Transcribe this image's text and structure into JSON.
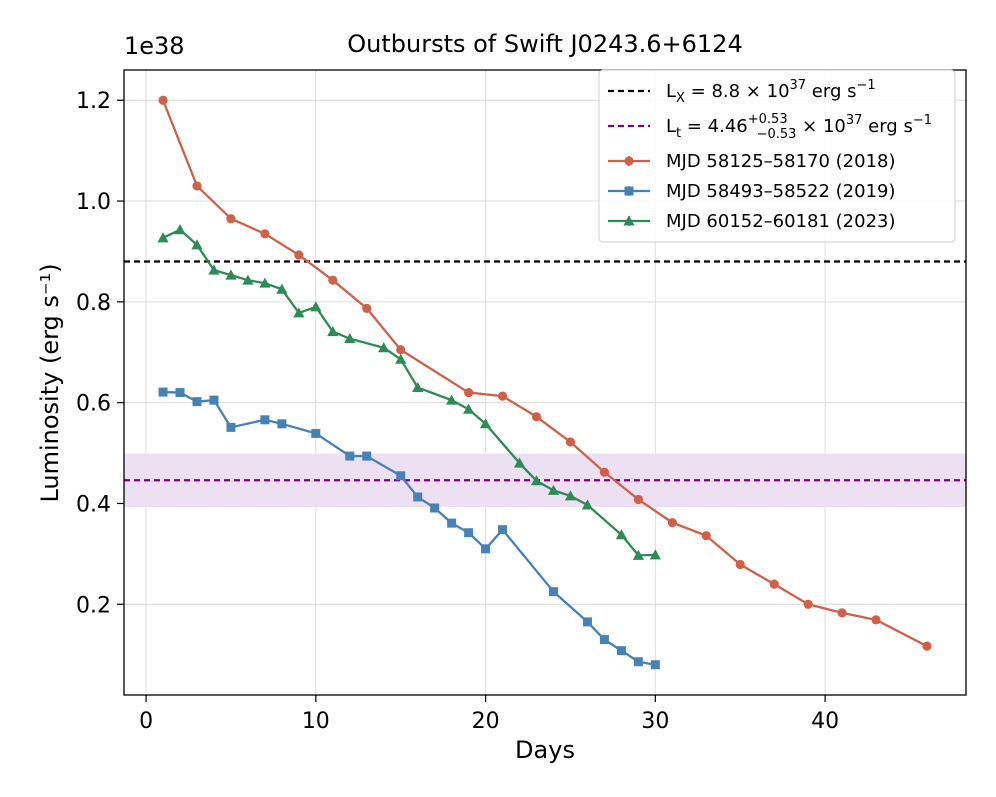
{
  "chart_data": {
    "type": "line",
    "title": "Outbursts of Swift J0243.6+6124",
    "xlabel": "Days",
    "ylabel": "Luminosity (erg s⁻¹)",
    "y_offset_label": "1e38",
    "y_scale": 1e+38,
    "xlim": [
      -1.3,
      48.3
    ],
    "ylim": [
      0.02,
      1.26
    ],
    "x_ticks": [
      0,
      10,
      20,
      30,
      40
    ],
    "x_tick_labels": [
      "0",
      "10",
      "20",
      "30",
      "40"
    ],
    "y_ticks": [
      0.2,
      0.4,
      0.6,
      0.8,
      1.0,
      1.2
    ],
    "y_tick_labels": [
      "0.2",
      "0.4",
      "0.6",
      "0.8",
      "1.0",
      "1.2"
    ],
    "grid": true,
    "legend_position": "top-right",
    "series": [
      {
        "name": "MJD 58125–58170 (2018)",
        "color": "#d1604b",
        "marker": "circle",
        "x": [
          1,
          3,
          5,
          7,
          9,
          11,
          13,
          15,
          19,
          21,
          23,
          25,
          27,
          29,
          31,
          33,
          35,
          37,
          39,
          41,
          43,
          46
        ],
        "y": [
          1.2,
          1.03,
          0.965,
          0.935,
          0.893,
          0.843,
          0.787,
          0.705,
          0.62,
          0.613,
          0.572,
          0.522,
          0.462,
          0.408,
          0.362,
          0.336,
          0.279,
          0.24,
          0.2,
          0.183,
          0.169,
          0.117
        ]
      },
      {
        "name": "MJD 58493–58522 (2019)",
        "color": "#4682b4",
        "marker": "square",
        "x": [
          1,
          2,
          3,
          4,
          5,
          7,
          8,
          10,
          12,
          13,
          15,
          16,
          17,
          18,
          19,
          20,
          21,
          24,
          26,
          27,
          28,
          29,
          30
        ],
        "y": [
          0.621,
          0.62,
          0.602,
          0.605,
          0.551,
          0.566,
          0.558,
          0.539,
          0.494,
          0.494,
          0.455,
          0.413,
          0.391,
          0.361,
          0.342,
          0.31,
          0.348,
          0.225,
          0.165,
          0.13,
          0.108,
          0.086,
          0.08
        ]
      },
      {
        "name": "MJD 60152–60181 (2023)",
        "color": "#2e8b57",
        "marker": "triangle",
        "x": [
          1,
          2,
          3,
          4,
          5,
          6,
          7,
          8,
          9,
          10,
          11,
          12,
          14,
          15,
          16,
          18,
          19,
          20,
          22,
          23,
          24,
          25,
          26,
          28,
          29,
          30
        ],
        "y": [
          0.927,
          0.943,
          0.913,
          0.863,
          0.853,
          0.843,
          0.837,
          0.825,
          0.778,
          0.79,
          0.741,
          0.727,
          0.709,
          0.686,
          0.63,
          0.605,
          0.587,
          0.558,
          0.48,
          0.445,
          0.426,
          0.415,
          0.397,
          0.338,
          0.297,
          0.298
        ]
      }
    ],
    "reference_lines": [
      {
        "name": "L_X = 8.8 × 10^37 erg s^-1",
        "y": 0.88,
        "color": "#000000",
        "style": "dashed"
      },
      {
        "name": "L_t = 4.46 (+0.53/-0.53) × 10^37 erg s^-1",
        "y": 0.446,
        "band": [
          0.393,
          0.499
        ],
        "color": "#800080",
        "band_color": "#ede0f2",
        "style": "dashed"
      }
    ],
    "legend": {
      "lx": {
        "sym": "L",
        "sub": "X",
        "eq": " = 8.8 × 10",
        "exp": "37",
        "unit": " erg s",
        "unit_exp": "−1"
      },
      "lt": {
        "sym": "L",
        "sub": "t",
        "eq": " = 4.46",
        "plus": "+0.53",
        "minus": "−0.53",
        "mult": " × 10",
        "exp": "37",
        "unit": " erg s",
        "unit_exp": "−1"
      }
    }
  }
}
